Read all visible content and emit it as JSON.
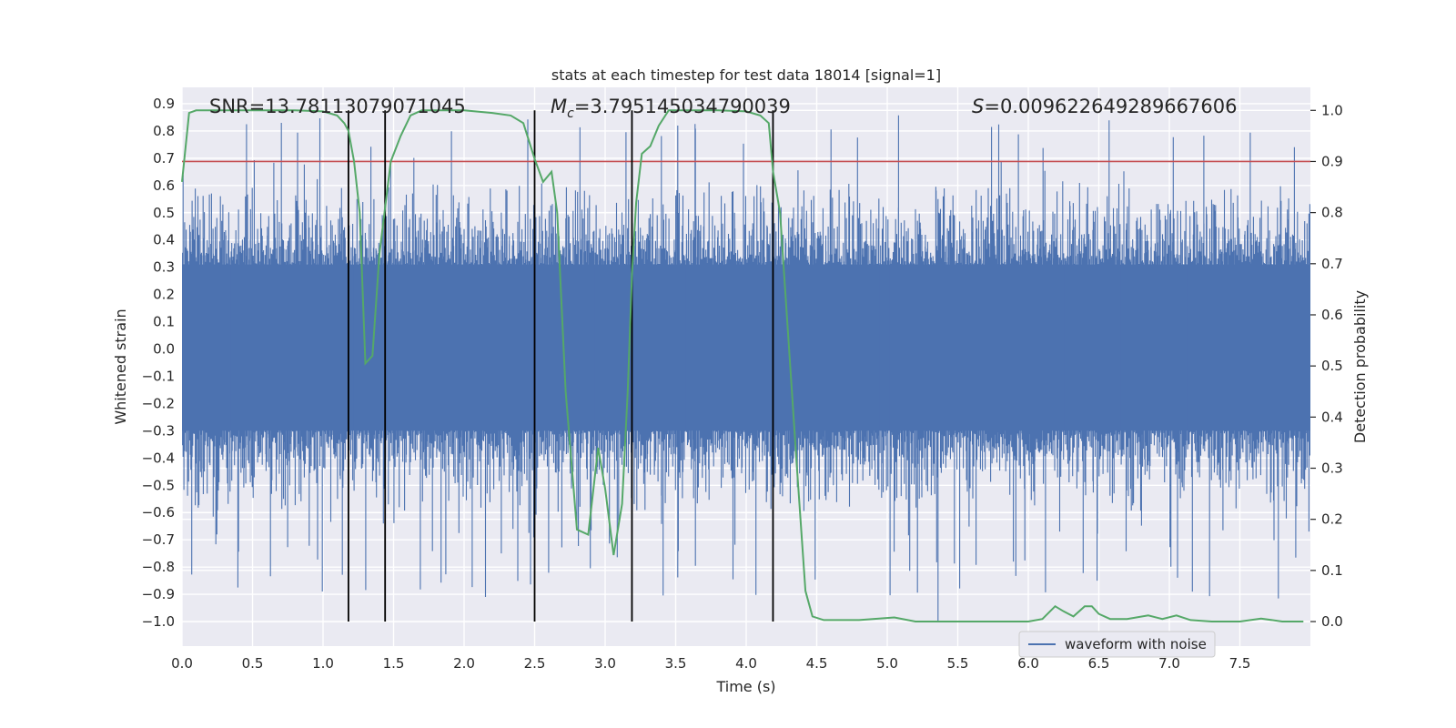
{
  "chart_data": {
    "type": "line",
    "title": "stats at each timestep for test data 18014 [signal=1]",
    "xlabel": "Time (s)",
    "ylabel": "Whitened strain",
    "ylabel_right": "Detection probability",
    "xlim": [
      0.0,
      8.0
    ],
    "ylim": [
      -1.09,
      0.96
    ],
    "ylim_right": [
      -0.048,
      1.045
    ],
    "x_ticks": [
      0.0,
      0.5,
      1.0,
      1.5,
      2.0,
      2.5,
      3.0,
      3.5,
      4.0,
      4.5,
      5.0,
      5.5,
      6.0,
      6.5,
      7.0,
      7.5
    ],
    "x_tick_labels": [
      "0.0",
      "0.5",
      "1.0",
      "1.5",
      "2.0",
      "2.5",
      "3.0",
      "3.5",
      "4.0",
      "4.5",
      "5.0",
      "5.5",
      "6.0",
      "6.5",
      "7.0",
      "7.5"
    ],
    "y_ticks": [
      0.9,
      0.8,
      0.7,
      0.6,
      0.5,
      0.4,
      0.3,
      0.2,
      0.1,
      0.0,
      -0.1,
      -0.2,
      -0.3,
      -0.4,
      -0.5,
      -0.6,
      -0.7,
      -0.8,
      -0.9,
      -1.0
    ],
    "y_tick_labels": [
      "0.9",
      "0.8",
      "0.7",
      "0.6",
      "0.5",
      "0.4",
      "0.3",
      "0.2",
      "0.1",
      "0.0",
      "−0.1",
      "−0.2",
      "−0.3",
      "−0.4",
      "−0.5",
      "−0.6",
      "−0.7",
      "−0.8",
      "−0.9",
      "−1.0"
    ],
    "y_right_ticks": [
      1.0,
      0.9,
      0.8,
      0.7,
      0.6,
      0.5,
      0.4,
      0.3,
      0.2,
      0.1,
      0.0
    ],
    "y_right_tick_labels": [
      "1.0",
      "0.9",
      "0.8",
      "0.7",
      "0.6",
      "0.5",
      "0.4",
      "0.3",
      "0.2",
      "0.1",
      "0.0"
    ],
    "grid": true,
    "legend": {
      "entries": [
        "waveform with noise"
      ],
      "placement": "lower-right"
    },
    "annotations": {
      "snr": "SNR=13.78113079071045",
      "mc_symbol": "M",
      "mc_subscript": "c",
      "mc_value": "=3.795145034790039",
      "s_symbol": "S",
      "s_value": "=0.009622649289667606"
    },
    "threshold_line": {
      "axis": "right",
      "y": 0.9,
      "color": "#c44e52"
    },
    "vertical_lines": [
      1.18,
      1.44,
      2.5,
      3.19,
      4.19
    ],
    "waveform": {
      "name": "waveform with noise",
      "color": "#4c72b0",
      "duration_s": 8.0,
      "core_band": [
        -0.3,
        0.31
      ],
      "typical_peak_range": [
        0.3,
        0.6
      ],
      "max_positive": 0.87,
      "max_negative": -1.0
    },
    "probability": {
      "color": "#55a868",
      "x": [
        0.0,
        0.05,
        0.1,
        0.2,
        0.4,
        0.6,
        0.8,
        1.0,
        1.1,
        1.15,
        1.18,
        1.22,
        1.26,
        1.3,
        1.35,
        1.4,
        1.44,
        1.48,
        1.55,
        1.62,
        1.7,
        1.8,
        2.0,
        2.2,
        2.33,
        2.42,
        2.5,
        2.56,
        2.62,
        2.66,
        2.72,
        2.8,
        2.88,
        2.95,
        3.0,
        3.06,
        3.12,
        3.16,
        3.19,
        3.22,
        3.26,
        3.32,
        3.38,
        3.45,
        3.6,
        3.8,
        4.0,
        4.1,
        4.16,
        4.19,
        4.24,
        4.3,
        4.36,
        4.42,
        4.47,
        4.55,
        4.8,
        5.05,
        5.2,
        5.4,
        5.6,
        5.8,
        6.0,
        6.1,
        6.19,
        6.25,
        6.32,
        6.4,
        6.45,
        6.5,
        6.58,
        6.7,
        6.85,
        6.95,
        7.05,
        7.15,
        7.3,
        7.5,
        7.65,
        7.8,
        7.95
      ],
      "y": [
        0.86,
        0.995,
        1.0,
        1.0,
        1.0,
        1.0,
        1.0,
        0.998,
        0.99,
        0.975,
        0.96,
        0.9,
        0.8,
        0.505,
        0.52,
        0.72,
        0.81,
        0.9,
        0.95,
        0.99,
        1.0,
        1.0,
        1.0,
        0.995,
        0.99,
        0.975,
        0.905,
        0.86,
        0.88,
        0.8,
        0.45,
        0.18,
        0.17,
        0.34,
        0.26,
        0.13,
        0.23,
        0.45,
        0.68,
        0.82,
        0.915,
        0.93,
        0.97,
        1.0,
        1.0,
        1.0,
        0.998,
        0.99,
        0.975,
        0.88,
        0.8,
        0.55,
        0.3,
        0.06,
        0.01,
        0.003,
        0.003,
        0.008,
        0.0,
        0.0,
        0.0,
        0.0,
        0.0,
        0.005,
        0.03,
        0.02,
        0.01,
        0.03,
        0.03,
        0.015,
        0.005,
        0.005,
        0.012,
        0.005,
        0.012,
        0.003,
        0.0,
        0.0,
        0.006,
        0.0,
        0.0
      ]
    }
  }
}
